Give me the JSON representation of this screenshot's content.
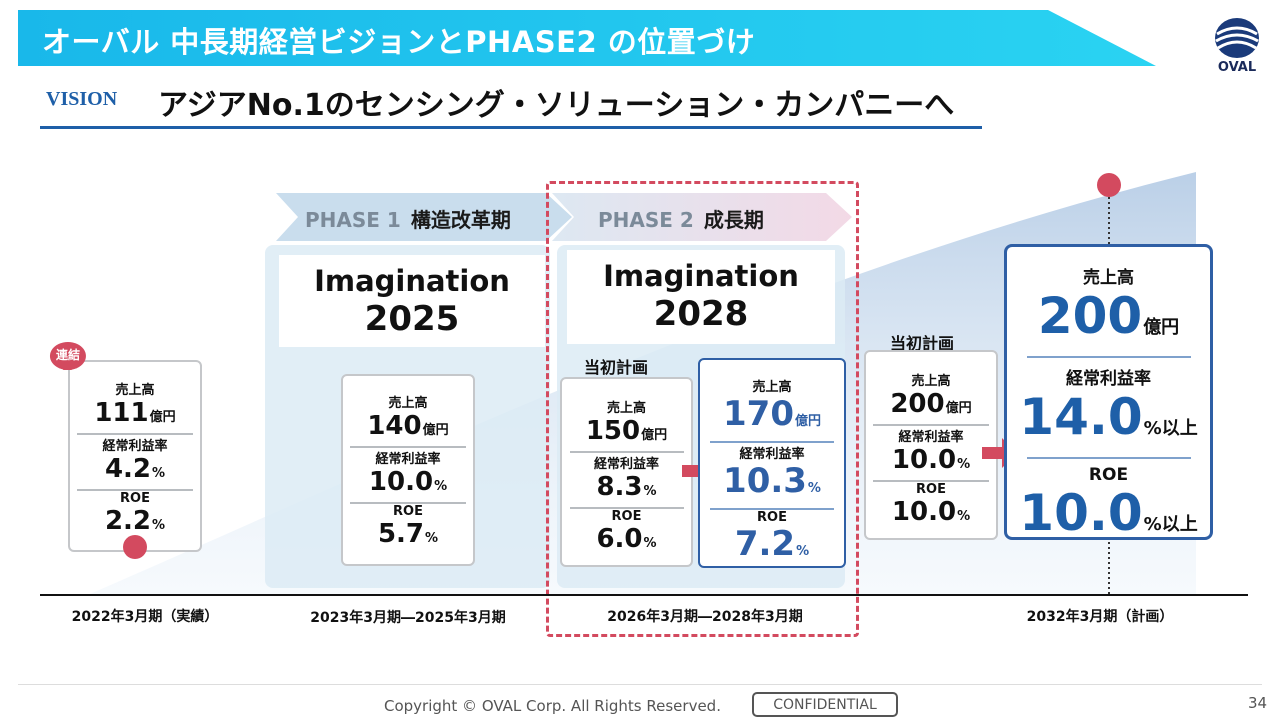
{
  "header": {
    "title": "オーバル 中長期経営ビジョンとPHASE2 の位置づけ",
    "logo_text": "OVAL"
  },
  "vision": {
    "label": "VISION",
    "text": "アジアNo.1のセンシング・ソリューション・カンパニーへ"
  },
  "phases": [
    {
      "phase": "PHASE 1",
      "name": "構造改革期",
      "plan_name_1": "Imagination",
      "plan_name_2": "2025"
    },
    {
      "phase": "PHASE 2",
      "name": "成長期",
      "plan_name_1": "Imagination",
      "plan_name_2": "2028"
    }
  ],
  "consolidated_badge": "連結",
  "labels": {
    "sales": "売上高",
    "ordinary_margin": "経常利益率",
    "roe": "ROE",
    "initial_plan": "当初計画",
    "oku_yen": "億円",
    "pct": "%",
    "pct_or_more": "%以上"
  },
  "cards": {
    "actual_2022": {
      "sales": "111",
      "margin": "4.2",
      "roe": "2.2"
    },
    "phase1": {
      "sales": "140",
      "margin": "10.0",
      "roe": "5.7"
    },
    "phase2_initial": {
      "sales": "150",
      "margin": "8.3",
      "roe": "6.0"
    },
    "phase2_revised": {
      "sales": "170",
      "margin": "10.3",
      "roe": "7.2"
    },
    "target_initial": {
      "sales": "200",
      "margin": "10.0",
      "roe": "10.0"
    },
    "target_2032": {
      "sales": "200",
      "margin": "14.0",
      "roe": "10.0"
    }
  },
  "periods": [
    "2022年3月期（実績）",
    "2023年3月期―2025年3月期",
    "2026年3月期―2028年3月期",
    "2032年3月期（計画）"
  ],
  "footer": {
    "copyright": "Copyright © OVAL Corp. All Rights Reserved.",
    "confidential": "CONFIDENTIAL",
    "page": "34"
  },
  "colors": {
    "title_band": "#1ec8ef",
    "accent_blue": "#1e5fa8",
    "accent_red": "#d34a5f",
    "panel_bg": "#dcebf4"
  }
}
